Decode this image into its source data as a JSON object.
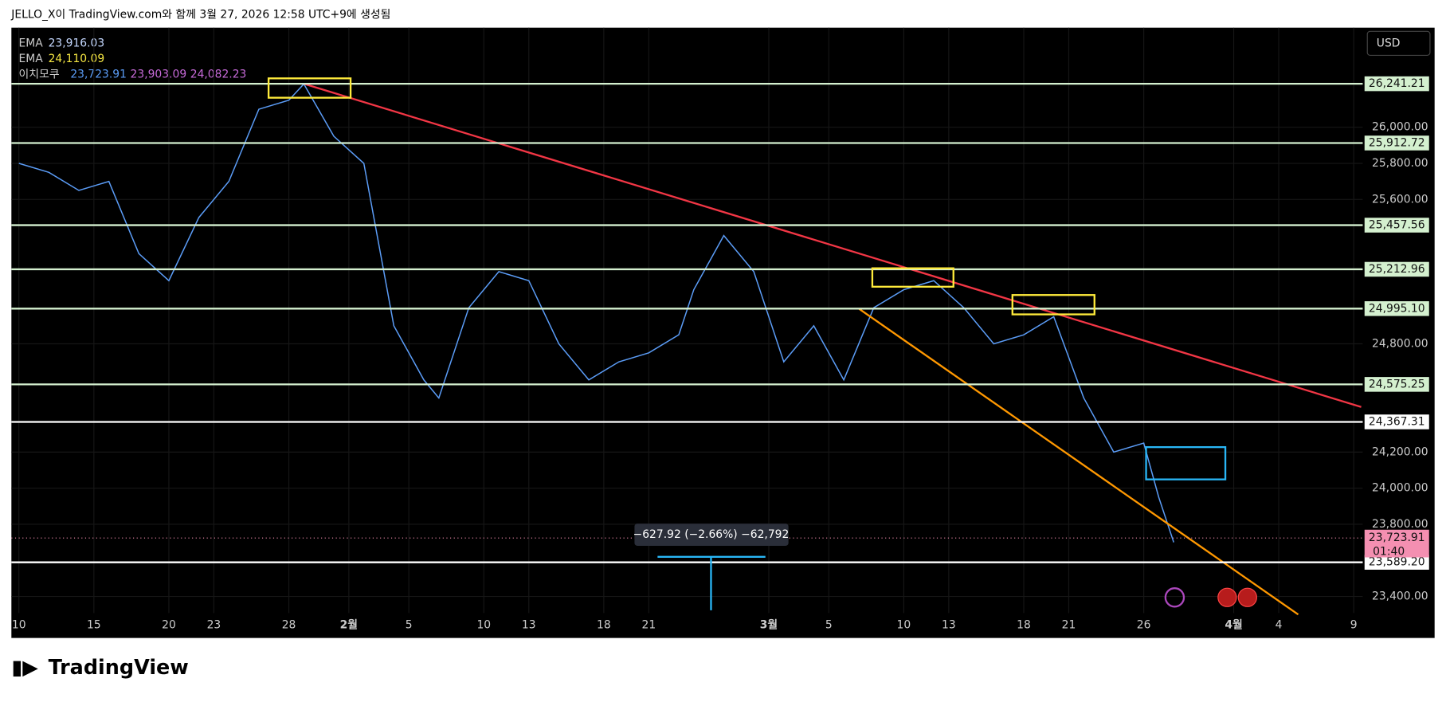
{
  "header": {
    "title": "JELLO_X이 TradingView.com와 함께 3월 27, 2026 12:58 UTC+9에 생성됨",
    "currency": "USD",
    "logo": "TradingView",
    "measure": "−627.92 (−2.66%) −62,792",
    "countdown": "01:40"
  },
  "legend": [
    {
      "name": "EMA",
      "values": [
        "23,916.03"
      ],
      "colors": [
        "#c5d8ff"
      ]
    },
    {
      "name": "EMA",
      "values": [
        "24,110.09"
      ],
      "colors": [
        "#f5e642"
      ]
    },
    {
      "name": "이치모쿠",
      "values": [
        "23,723.91",
        "23,903.09",
        "24,082.23"
      ],
      "colors": [
        "#5b9cf6",
        "#c66ad8",
        "#c66ad8"
      ]
    }
  ],
  "chart_data": {
    "type": "line",
    "xlim": [
      9.5,
      99.6
    ],
    "xticks": [
      {
        "value": 10,
        "label": "10"
      },
      {
        "value": 15,
        "label": "15"
      },
      {
        "value": 20,
        "label": "20"
      },
      {
        "value": 23,
        "label": "23"
      },
      {
        "value": 28,
        "label": "28"
      },
      {
        "value": 32,
        "label": "2월"
      },
      {
        "value": 36,
        "label": "5"
      },
      {
        "value": 41,
        "label": "10"
      },
      {
        "value": 44,
        "label": "13"
      },
      {
        "value": 49,
        "label": "18"
      },
      {
        "value": 52,
        "label": "21"
      },
      {
        "value": 60,
        "label": "3월"
      },
      {
        "value": 64,
        "label": "5"
      },
      {
        "value": 69,
        "label": "10"
      },
      {
        "value": 72,
        "label": "13"
      },
      {
        "value": 77,
        "label": "18"
      },
      {
        "value": 80,
        "label": "21"
      },
      {
        "value": 85,
        "label": "26"
      },
      {
        "value": 91,
        "label": "4월"
      },
      {
        "value": 94,
        "label": "4"
      },
      {
        "value": 99,
        "label": "9"
      }
    ],
    "ylim": [
      23170,
      26552
    ],
    "yticks": [
      {
        "value": 23400,
        "label": "23,400.00"
      },
      {
        "value": 23800,
        "label": "23,800.00"
      },
      {
        "value": 24000,
        "label": "24,000.00"
      },
      {
        "value": 24200,
        "label": "24,200.00"
      },
      {
        "value": 24800,
        "label": "24,800.00"
      },
      {
        "value": 25600,
        "label": "25,600.00"
      },
      {
        "value": 25800,
        "label": "25,800.00"
      },
      {
        "value": 26000,
        "label": "26,000.00"
      }
    ],
    "levels": [
      {
        "value": 26241.21,
        "label": "26,241.21",
        "color": "#d4f0cf"
      },
      {
        "value": 25912.72,
        "label": "25,912.72",
        "color": "#d4f0cf"
      },
      {
        "value": 25457.56,
        "label": "25,457.56",
        "color": "#d4f0cf"
      },
      {
        "value": 25212.96,
        "label": "25,212.96",
        "color": "#d4f0cf"
      },
      {
        "value": 24995.1,
        "label": "24,995.10",
        "color": "#d4f0cf"
      },
      {
        "value": 24575.25,
        "label": "24,575.25",
        "color": "#d4f0cf"
      },
      {
        "value": 24367.31,
        "label": "24,367.31",
        "color": "#ffffff"
      },
      {
        "value": 23589.2,
        "label": "23,589.20",
        "color": "#ffffff"
      }
    ],
    "last_price": {
      "value": 23723.91,
      "label": "23,723.91",
      "color": "#f48fb1"
    },
    "series": [
      {
        "color": "#5b9cf6",
        "x": [
          10,
          12,
          14,
          16,
          18,
          20,
          22,
          24,
          26,
          28,
          29,
          31,
          33,
          35,
          37,
          38,
          40,
          42,
          44,
          46,
          48,
          50,
          52,
          54,
          55,
          57,
          59,
          61,
          63,
          65,
          67,
          69,
          71,
          73,
          75,
          77,
          79,
          81,
          83,
          85,
          86,
          87
        ],
        "values": [
          25800,
          25750,
          25650,
          25700,
          25300,
          25150,
          25500,
          25700,
          26100,
          26150,
          26240,
          25950,
          25800,
          24900,
          24600,
          24500,
          25000,
          25200,
          25150,
          24800,
          24600,
          24700,
          24750,
          24850,
          25100,
          25400,
          25200,
          24700,
          24900,
          24600,
          25000,
          25100,
          25150,
          25000,
          24800,
          24850,
          24950,
          24500,
          24200,
          24250,
          23950,
          23700
        ]
      }
    ],
    "trendlines": [
      {
        "color": "#f23645",
        "x": [
          29,
          99.5
        ],
        "values": [
          26241.21,
          24450
        ]
      },
      {
        "color": "#ff9800",
        "x": [
          66,
          95.3
        ],
        "values": [
          24995.1,
          23300
        ]
      }
    ]
  }
}
